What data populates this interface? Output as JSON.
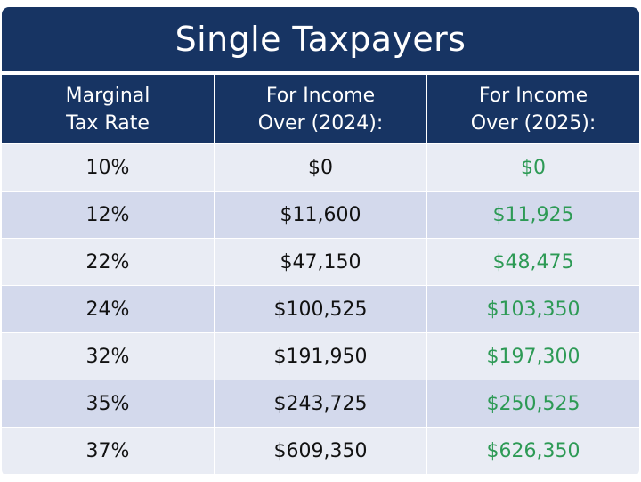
{
  "title": "Single Taxpayers",
  "headers": [
    [
      "Marginal",
      "Tax Rate"
    ],
    [
      "For Income",
      "Over (2024):"
    ],
    [
      "For Income",
      "Over (2025):"
    ]
  ],
  "rows": [
    {
      "rate": "10%",
      "y2024": "$0",
      "y2025": "$0"
    },
    {
      "rate": "12%",
      "y2024": "$11,600",
      "y2025": "$11,925"
    },
    {
      "rate": "22%",
      "y2024": "$47,150",
      "y2025": "$48,475"
    },
    {
      "rate": "24%",
      "y2024": "$100,525",
      "y2025": "$103,350"
    },
    {
      "rate": "32%",
      "y2024": "$191,950",
      "y2025": "$197,300"
    },
    {
      "rate": "35%",
      "y2024": "$243,725",
      "y2025": "$250,525"
    },
    {
      "rate": "37%",
      "y2024": "$609,350",
      "y2025": "$626,350"
    }
  ],
  "colors": {
    "header_bg": "#173463",
    "row_light": "#e9ecf4",
    "row_dark": "#d3d9ec",
    "accent_green": "#2d9a55"
  }
}
